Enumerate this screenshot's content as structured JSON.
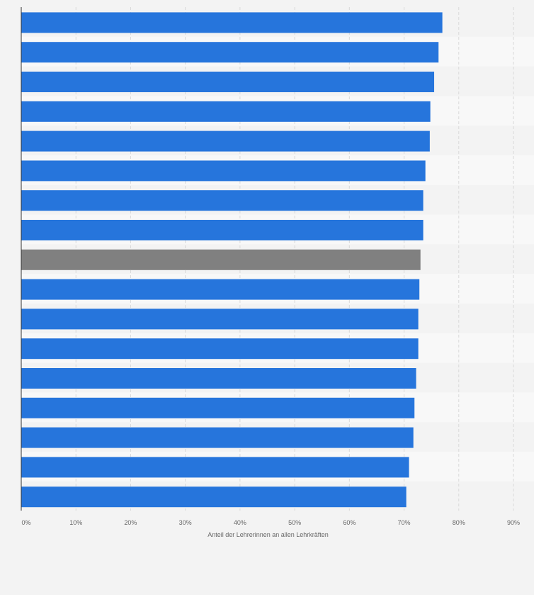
{
  "chart_data": {
    "type": "bar",
    "orientation": "horizontal",
    "xlabel": "Anteil der Lehrerinnen an allen Lehrkräften",
    "ylabel": "",
    "xlim": [
      0,
      90
    ],
    "x_ticks": [
      "0%",
      "10%",
      "20%",
      "30%",
      "40%",
      "50%",
      "60%",
      "70%",
      "80%",
      "90%"
    ],
    "grid": true,
    "categories_visible": false,
    "values": [
      77.0,
      76.3,
      75.5,
      74.8,
      74.7,
      73.9,
      73.5,
      73.5,
      73.0,
      72.8,
      72.6,
      72.6,
      72.2,
      71.9,
      71.7,
      70.9,
      70.4
    ],
    "highlight_index": 8,
    "colors": {
      "bar": "#2675dc",
      "highlight": "#808080",
      "background": "#f3f3f3",
      "band": "#f8f8f8",
      "grid": "#d9d9d9",
      "axis": "#333333",
      "text": "#666666"
    }
  }
}
